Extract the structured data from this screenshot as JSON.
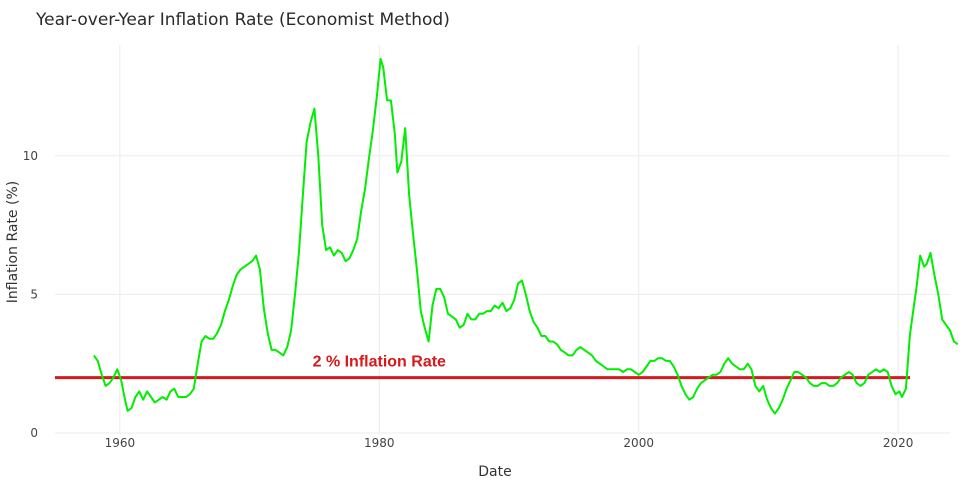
{
  "chart_data": {
    "type": "line",
    "title": "Year-over-Year Inflation Rate (Economist Method)",
    "xlabel": "Date",
    "ylabel": "Inflation Rate (%)",
    "xlim": [
      1955,
      2024
    ],
    "ylim": [
      0,
      14
    ],
    "x_ticks": [
      1960,
      1980,
      2000,
      2020
    ],
    "y_ticks": [
      0,
      5,
      10
    ],
    "grid": true,
    "series": [
      {
        "color": "#00ee00",
        "x": [
          1958.0,
          1958.3,
          1958.6,
          1958.9,
          1959.2,
          1959.5,
          1959.8,
          1960.1,
          1960.4,
          1960.6,
          1960.9,
          1961.2,
          1961.5,
          1961.8,
          1962.1,
          1962.4,
          1962.7,
          1963.0,
          1963.3,
          1963.6,
          1963.9,
          1964.2,
          1964.5,
          1964.8,
          1965.1,
          1965.4,
          1965.7,
          1966.0,
          1966.3,
          1966.6,
          1966.9,
          1967.2,
          1967.5,
          1967.8,
          1968.1,
          1968.4,
          1968.7,
          1969.0,
          1969.3,
          1969.6,
          1969.9,
          1970.2,
          1970.5,
          1970.8,
          1971.1,
          1971.4,
          1971.7,
          1972.0,
          1972.3,
          1972.6,
          1972.9,
          1973.2,
          1973.5,
          1973.8,
          1974.1,
          1974.4,
          1974.7,
          1975.0,
          1975.3,
          1975.6,
          1975.9,
          1976.2,
          1976.5,
          1976.8,
          1977.1,
          1977.4,
          1977.7,
          1978.0,
          1978.3,
          1978.6,
          1978.9,
          1979.2,
          1979.5,
          1979.8,
          1980.1,
          1980.3,
          1980.6,
          1980.9,
          1981.2,
          1981.4,
          1981.7,
          1982.0,
          1982.3,
          1982.6,
          1982.9,
          1983.2,
          1983.5,
          1983.8,
          1984.1,
          1984.4,
          1984.7,
          1985.0,
          1985.3,
          1985.6,
          1985.9,
          1986.2,
          1986.5,
          1986.8,
          1987.1,
          1987.4,
          1987.7,
          1988.0,
          1988.3,
          1988.6,
          1988.9,
          1989.2,
          1989.5,
          1989.8,
          1990.1,
          1990.4,
          1990.7,
          1991.0,
          1991.3,
          1991.6,
          1991.9,
          1992.2,
          1992.5,
          1992.8,
          1993.1,
          1993.4,
          1993.7,
          1994.0,
          1994.3,
          1994.6,
          1994.9,
          1995.2,
          1995.5,
          1995.8,
          1996.1,
          1996.4,
          1996.7,
          1997.0,
          1997.3,
          1997.6,
          1997.9,
          1998.2,
          1998.5,
          1998.8,
          1999.1,
          1999.4,
          1999.7,
          2000.0,
          2000.3,
          2000.6,
          2000.9,
          2001.2,
          2001.5,
          2001.8,
          2002.1,
          2002.4,
          2002.7,
          2003.0,
          2003.3,
          2003.6,
          2003.9,
          2004.2,
          2004.5,
          2004.8,
          2005.1,
          2005.4,
          2005.7,
          2006.0,
          2006.3,
          2006.6,
          2006.9,
          2007.2,
          2007.5,
          2007.8,
          2008.1,
          2008.4,
          2008.7,
          2009.0,
          2009.3,
          2009.6,
          2009.9,
          2010.2,
          2010.5,
          2010.8,
          2011.1,
          2011.4,
          2011.7,
          2012.0,
          2012.3,
          2012.6,
          2012.9,
          2013.2,
          2013.5,
          2013.8,
          2014.1,
          2014.4,
          2014.7,
          2015.0,
          2015.3,
          2015.6,
          2015.9,
          2016.2,
          2016.5,
          2016.8,
          2017.1,
          2017.4,
          2017.7,
          2018.0,
          2018.3,
          2018.6,
          2018.9,
          2019.2,
          2019.5,
          2019.8,
          2020.1,
          2020.3,
          2020.6,
          2020.9,
          2021.1,
          2021.4,
          2021.7,
          2022.0,
          2022.2,
          2022.5,
          2022.8,
          2023.1,
          2023.4,
          2023.7,
          2024.0,
          2024.3,
          2024.6
        ],
        "y": [
          2.8,
          2.6,
          2.1,
          1.7,
          1.8,
          2.0,
          2.3,
          1.9,
          1.2,
          0.8,
          0.9,
          1.3,
          1.5,
          1.2,
          1.5,
          1.3,
          1.1,
          1.2,
          1.3,
          1.2,
          1.5,
          1.6,
          1.3,
          1.3,
          1.3,
          1.4,
          1.6,
          2.5,
          3.3,
          3.5,
          3.4,
          3.4,
          3.6,
          3.9,
          4.4,
          4.8,
          5.3,
          5.7,
          5.9,
          6.0,
          6.1,
          6.2,
          6.4,
          5.9,
          4.5,
          3.6,
          3.0,
          3.0,
          2.9,
          2.8,
          3.1,
          3.7,
          5.0,
          6.5,
          8.5,
          10.5,
          11.2,
          11.7,
          10.0,
          7.5,
          6.6,
          6.7,
          6.4,
          6.6,
          6.5,
          6.2,
          6.3,
          6.6,
          7.0,
          8.0,
          8.8,
          9.9,
          10.9,
          12.1,
          13.5,
          13.2,
          12.0,
          12.0,
          10.8,
          9.4,
          9.8,
          11.0,
          8.6,
          7.2,
          5.9,
          4.4,
          3.8,
          3.3,
          4.6,
          5.2,
          5.2,
          4.9,
          4.3,
          4.2,
          4.1,
          3.8,
          3.9,
          4.3,
          4.1,
          4.1,
          4.3,
          4.3,
          4.4,
          4.4,
          4.6,
          4.5,
          4.7,
          4.4,
          4.5,
          4.8,
          5.4,
          5.5,
          5.0,
          4.4,
          4.0,
          3.8,
          3.5,
          3.5,
          3.3,
          3.3,
          3.2,
          3.0,
          2.9,
          2.8,
          2.8,
          3.0,
          3.1,
          3.0,
          2.9,
          2.8,
          2.6,
          2.5,
          2.4,
          2.3,
          2.3,
          2.3,
          2.3,
          2.2,
          2.3,
          2.3,
          2.2,
          2.1,
          2.2,
          2.4,
          2.6,
          2.6,
          2.7,
          2.7,
          2.6,
          2.6,
          2.4,
          2.1,
          1.7,
          1.4,
          1.2,
          1.3,
          1.6,
          1.8,
          1.9,
          2.0,
          2.1,
          2.1,
          2.2,
          2.5,
          2.7,
          2.5,
          2.4,
          2.3,
          2.3,
          2.5,
          2.3,
          1.7,
          1.5,
          1.7,
          1.2,
          0.9,
          0.7,
          0.9,
          1.2,
          1.6,
          1.9,
          2.2,
          2.2,
          2.1,
          2.0,
          1.8,
          1.7,
          1.7,
          1.8,
          1.8,
          1.7,
          1.7,
          1.8,
          2.0,
          2.1,
          2.2,
          2.1,
          1.8,
          1.7,
          1.8,
          2.1,
          2.2,
          2.3,
          2.2,
          2.3,
          2.2,
          1.7,
          1.4,
          1.5,
          1.3,
          1.6,
          3.5,
          4.2,
          5.2,
          6.4,
          6.0,
          6.1,
          6.5,
          5.7,
          5.0,
          4.1,
          3.9,
          3.7,
          3.3,
          3.2
        ]
      }
    ],
    "reference_lines": [
      {
        "y": 2,
        "color": "#d7191c",
        "label": "2 % Inflation Rate",
        "label_x": 1980
      }
    ]
  }
}
